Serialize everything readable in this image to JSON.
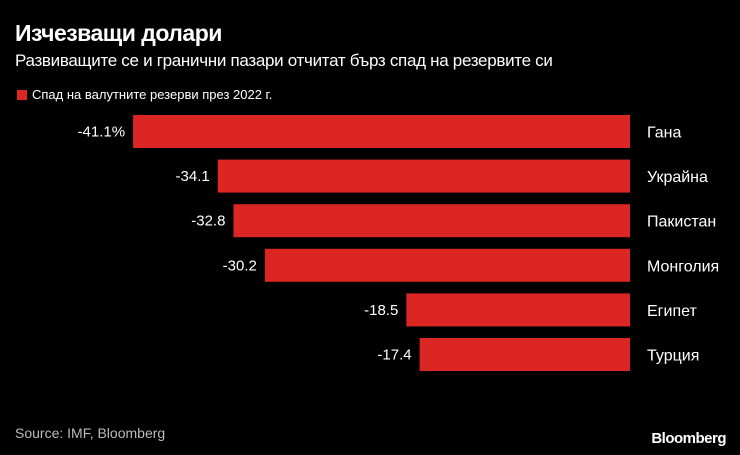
{
  "title": "Изчезващи долари",
  "subtitle": "Развиващите се и гранични пазари отчитат бърз спад на резервите си",
  "source": "Source: IMF, Bloomberg",
  "logo": "Bloomberg",
  "chart_data": {
    "type": "bar",
    "orientation": "horizontal",
    "categories": [
      "Гана",
      "Украйна",
      "Пакистан",
      "Монголия",
      "Египет",
      "Турция"
    ],
    "series": [
      {
        "name": "Спад на валутните резерви през 2022 г.",
        "values": [
          -41.1,
          -34.1,
          -32.8,
          -30.2,
          -18.5,
          -17.4
        ],
        "color": "#dc2624"
      }
    ],
    "data_labels": [
      "-41.1%",
      "-34.1",
      "-32.8",
      "-30.2",
      "-18.5",
      "-17.4"
    ],
    "legend": "top-left",
    "grid": false
  }
}
